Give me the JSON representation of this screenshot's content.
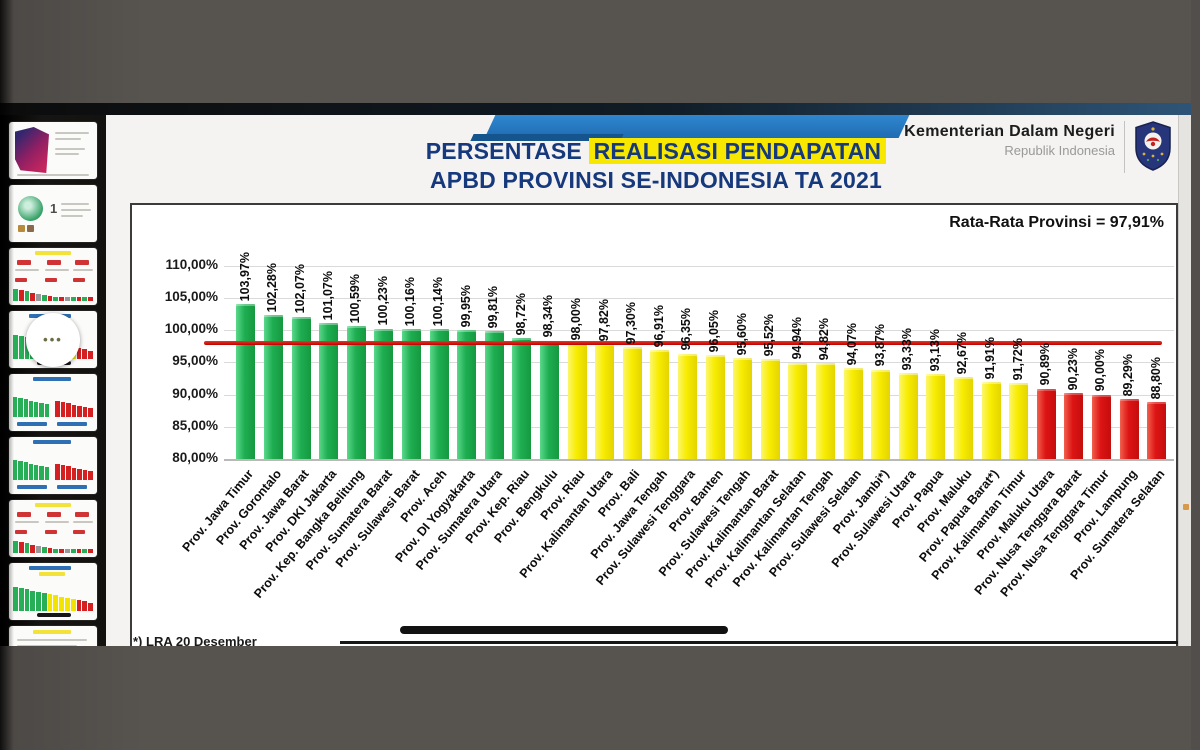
{
  "slide": {
    "title_prefix": "PERSENTASE ",
    "title_highlight": "REALISASI PENDAPATAN",
    "title_line2": "APBD PROVINSI SE-INDONESIA TA 2021",
    "ministry": "Kementerian Dalam Negeri",
    "ministry_sub": "Republik Indonesia",
    "average_note": "Rata-Rata Provinsi = 97,91%",
    "footnote": "*) LRA 20 Desember"
  },
  "sidebar": {
    "menu_dots": "•••",
    "thumbnails": [
      {
        "id": 1,
        "kind": "title"
      },
      {
        "id": 2,
        "kind": "cartoon",
        "badge": "1"
      },
      {
        "id": 3,
        "kind": "dashboard"
      },
      {
        "id": 4,
        "kind": "chart-gyr",
        "overlay_dots": true
      },
      {
        "id": 5,
        "kind": "chart-gr"
      },
      {
        "id": 6,
        "kind": "chart-gr"
      },
      {
        "id": 7,
        "kind": "dashboard"
      },
      {
        "id": 8,
        "kind": "chart-gyr"
      },
      {
        "id": 9,
        "kind": "partial"
      }
    ]
  },
  "colors": {
    "title_blue": "#16387c",
    "highlight_yellow": "#f8e800",
    "bar_green": "#1fae52",
    "bar_yellow": "#f7ec00",
    "bar_red": "#dd1414",
    "average_line": "#c00000"
  },
  "chart_data": {
    "type": "bar",
    "title": "PERSENTASE REALISASI PENDAPATAN APBD PROVINSI SE-INDONESIA TA 2021",
    "unit": "%",
    "ylim": [
      80,
      110
    ],
    "grid": true,
    "yticks": [
      {
        "value": 110,
        "label": "110,00%"
      },
      {
        "value": 105,
        "label": "105,00%"
      },
      {
        "value": 100,
        "label": "100,00%"
      },
      {
        "value": 95,
        "label": "95,00%"
      },
      {
        "value": 90,
        "label": "90,00%"
      },
      {
        "value": 85,
        "label": "85,00%"
      },
      {
        "value": 80,
        "label": "80,00%"
      }
    ],
    "average_line": {
      "value": 97.91,
      "label": "Rata-Rata Provinsi = 97,91%",
      "color": "#c00000"
    },
    "provinces": [
      {
        "name": "Prov. Jawa Timur",
        "value": 103.97,
        "label": "103,97%",
        "group": "green"
      },
      {
        "name": "Prov. Gorontalo",
        "value": 102.28,
        "label": "102,28%",
        "group": "green"
      },
      {
        "name": "Prov. Jawa Barat",
        "value": 102.07,
        "label": "102,07%",
        "group": "green"
      },
      {
        "name": "Prov. DKI Jakarta",
        "value": 101.07,
        "label": "101,07%",
        "group": "green"
      },
      {
        "name": "Prov. Kep. Bangka Belitung",
        "value": 100.59,
        "label": "100,59%",
        "group": "green"
      },
      {
        "name": "Prov. Sumatera Barat",
        "value": 100.23,
        "label": "100,23%",
        "group": "green"
      },
      {
        "name": "Prov. Sulawesi Barat",
        "value": 100.16,
        "label": "100,16%",
        "group": "green"
      },
      {
        "name": "Prov. Aceh",
        "value": 100.14,
        "label": "100,14%",
        "group": "green"
      },
      {
        "name": "Prov. DI Yogyakarta",
        "value": 99.95,
        "label": "99,95%",
        "group": "green"
      },
      {
        "name": "Prov. Sumatera Utara",
        "value": 99.81,
        "label": "99,81%",
        "group": "green"
      },
      {
        "name": "Prov. Kep. Riau",
        "value": 98.72,
        "label": "98,72%",
        "group": "green"
      },
      {
        "name": "Prov. Bengkulu",
        "value": 98.34,
        "label": "98,34%",
        "group": "green"
      },
      {
        "name": "Prov. Riau",
        "value": 98.0,
        "label": "98,00%",
        "group": "yellow"
      },
      {
        "name": "Prov. Kalimantan Utara",
        "value": 97.82,
        "label": "97,82%",
        "group": "yellow"
      },
      {
        "name": "Prov. Bali",
        "value": 97.3,
        "label": "97,30%",
        "group": "yellow"
      },
      {
        "name": "Prov. Jawa Tengah",
        "value": 96.91,
        "label": "96,91%",
        "group": "yellow"
      },
      {
        "name": "Prov. Sulawesi Tenggara",
        "value": 96.35,
        "label": "96,35%",
        "group": "yellow"
      },
      {
        "name": "Prov. Banten",
        "value": 96.05,
        "label": "96,05%",
        "group": "yellow"
      },
      {
        "name": "Prov. Sulawesi Tengah",
        "value": 95.6,
        "label": "95,60%",
        "group": "yellow"
      },
      {
        "name": "Prov. Kalimantan Barat",
        "value": 95.52,
        "label": "95,52%",
        "group": "yellow"
      },
      {
        "name": "Prov. Kalimantan Selatan",
        "value": 94.94,
        "label": "94,94%",
        "group": "yellow"
      },
      {
        "name": "Prov. Kalimantan Tengah",
        "value": 94.82,
        "label": "94,82%",
        "group": "yellow"
      },
      {
        "name": "Prov. Sulawesi Selatan",
        "value": 94.07,
        "label": "94,07%",
        "group": "yellow"
      },
      {
        "name": "Prov. Jambi*)",
        "value": 93.87,
        "label": "93,87%",
        "group": "yellow"
      },
      {
        "name": "Prov. Sulawesi Utara",
        "value": 93.33,
        "label": "93,33%",
        "group": "yellow"
      },
      {
        "name": "Prov. Papua",
        "value": 93.13,
        "label": "93,13%",
        "group": "yellow"
      },
      {
        "name": "Prov. Maluku",
        "value": 92.67,
        "label": "92,67%",
        "group": "yellow"
      },
      {
        "name": "Prov. Papua Barat*)",
        "value": 91.91,
        "label": "91,91%",
        "group": "yellow"
      },
      {
        "name": "Prov. Kalimantan Timur",
        "value": 91.72,
        "label": "91,72%",
        "group": "yellow"
      },
      {
        "name": "Prov. Maluku Utara",
        "value": 90.89,
        "label": "90,89%",
        "group": "red"
      },
      {
        "name": "Prov. Nusa Tenggara Barat",
        "value": 90.23,
        "label": "90,23%",
        "group": "red"
      },
      {
        "name": "Prov. Nusa Tenggara Timur",
        "value": 90.0,
        "label": "90,00%",
        "group": "red"
      },
      {
        "name": "Prov. Lampung",
        "value": 89.29,
        "label": "89,29%",
        "group": "red"
      },
      {
        "name": "Prov. Sumatera Selatan",
        "value": 88.8,
        "label": "88,80%",
        "group": "red"
      }
    ]
  }
}
